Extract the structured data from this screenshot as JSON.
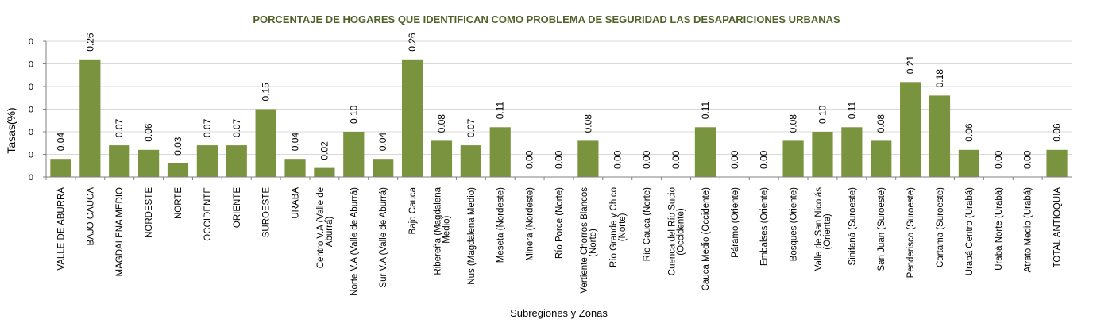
{
  "colors": {
    "bar": "#7a933e",
    "title": "#4f6228",
    "grid": "#d9d9d9",
    "axis": "#808080",
    "text": "#000000"
  },
  "chart_data": {
    "type": "bar",
    "title": "PORCENTAJE DE HOGARES QUE IDENTIFICAN COMO PROBLEMA DE SEGURIDAD LAS DESAPARICIONES URBANAS",
    "xlabel": "Subregiones y Zonas",
    "ylabel": "Tasas(%)",
    "ylim": [
      0,
      0.3
    ],
    "y_tick_labels": [
      "0",
      "0",
      "0",
      "0",
      "0",
      "0",
      "0"
    ],
    "grid": true,
    "legend": "none",
    "categories": [
      [
        "VALLE DE ABURRÁ"
      ],
      [
        "BAJO CAUCA"
      ],
      [
        "MAGDALENA MEDIO"
      ],
      [
        "NORDESTE"
      ],
      [
        "NORTE"
      ],
      [
        "OCCIDENTE"
      ],
      [
        "ORIENTE"
      ],
      [
        "SUROESTE"
      ],
      [
        "URABA"
      ],
      [
        "Centro V.A (Valle de",
        "Aburrá)"
      ],
      [
        "Norte V.A (Valle de Aburrá)"
      ],
      [
        "Sur V.A (Valle de Aburrá)"
      ],
      [
        "Bajo Cauca"
      ],
      [
        "Ribereña (Magdalena",
        "Medio)"
      ],
      [
        "Nus (Magdalena Medio)"
      ],
      [
        "Meseta (Nordeste)"
      ],
      [
        "Minera (Nordeste)"
      ],
      [
        "Río Porce (Norte)"
      ],
      [
        "Vertiente Chorros Blancos",
        "(Norte)"
      ],
      [
        "Río Grande y Chico",
        "(Norte)"
      ],
      [
        "Río Cauca (Norte)"
      ],
      [
        "Cuenca del Río Sucio",
        "(Occidente)"
      ],
      [
        "Cauca Medio (Occidente)"
      ],
      [
        "Páramo (Oriente)"
      ],
      [
        "Embalses (Oriente)"
      ],
      [
        "Bosques (Oriente)"
      ],
      [
        "Valle de San Nicolás",
        "(Oriente)"
      ],
      [
        "Sinifaná (Suroeste)"
      ],
      [
        "San Juan (Suroeste)"
      ],
      [
        "Penderisco (Suroeste)"
      ],
      [
        "Cartama (Suroeste)"
      ],
      [
        "Urabá Centro (Urabá)"
      ],
      [
        "Urabá Norte (Urabá)"
      ],
      [
        "Atrato Medio (Urabá)"
      ],
      [
        "TOTAL ANTIOQUIA"
      ]
    ],
    "values": [
      0.04,
      0.26,
      0.07,
      0.06,
      0.03,
      0.07,
      0.07,
      0.15,
      0.04,
      0.02,
      0.1,
      0.04,
      0.26,
      0.08,
      0.07,
      0.11,
      0.0,
      0.0,
      0.08,
      0.0,
      0.0,
      0.0,
      0.11,
      0.0,
      0.0,
      0.08,
      0.1,
      0.11,
      0.08,
      0.21,
      0.18,
      0.06,
      0.0,
      0.0,
      0.06
    ],
    "data_labels": [
      "0.04",
      "0.26",
      "0.07",
      "0.06",
      "0.03",
      "0.07",
      "0.07",
      "0.15",
      "0.04",
      "0.02",
      "0.10",
      "0.04",
      "0.26",
      "0.08",
      "0.07",
      "0.11",
      "0.00",
      "0.00",
      "0.08",
      "0.00",
      "0.00",
      "0.00",
      "0.11",
      "0.00",
      "0.00",
      "0.08",
      "0.10",
      "0.11",
      "0.08",
      "0.21",
      "0.18",
      "0.06",
      "0.00",
      "0.00",
      "0.06"
    ]
  }
}
